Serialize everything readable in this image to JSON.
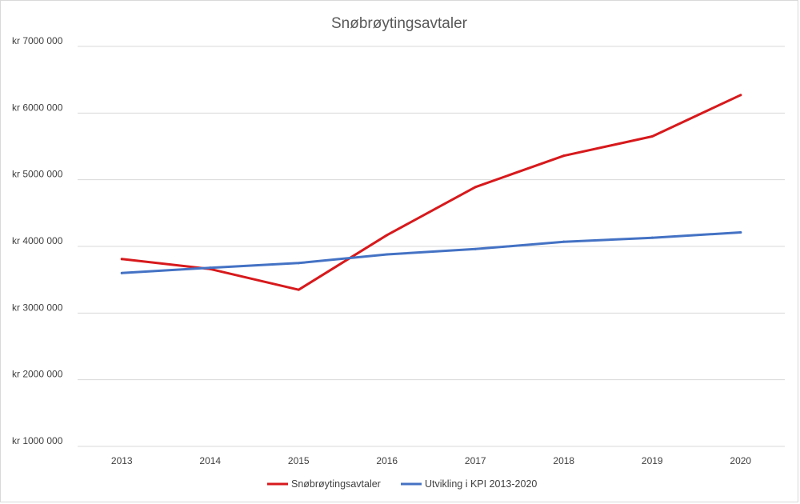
{
  "chart_data": {
    "type": "line",
    "title": "Snøbrøytingsavtaler",
    "xlabel": "",
    "ylabel": "",
    "categories": [
      "2013",
      "2014",
      "2015",
      "2016",
      "2017",
      "2018",
      "2019",
      "2020"
    ],
    "ylim": [
      1000000,
      7000000
    ],
    "yticks": [
      1000000,
      2000000,
      3000000,
      4000000,
      5000000,
      6000000,
      7000000
    ],
    "ytick_labels": [
      "kr 1000 000",
      "kr 2000 000",
      "kr 3000 000",
      "kr 4000 000",
      "kr 5000 000",
      "kr 6000 000",
      "kr 7000 000"
    ],
    "grid": true,
    "legend_position": "bottom",
    "series": [
      {
        "name": "Snøbrøytingsavtaler",
        "color": "#d7191c",
        "values": [
          3810000,
          3660000,
          3350000,
          4170000,
          4890000,
          5360000,
          5650000,
          6270000
        ]
      },
      {
        "name": "Utvikling i KPI 2013-2020",
        "color": "#4472c4",
        "values": [
          3600000,
          3680000,
          3750000,
          3880000,
          3960000,
          4070000,
          4130000,
          4210000
        ]
      }
    ]
  }
}
